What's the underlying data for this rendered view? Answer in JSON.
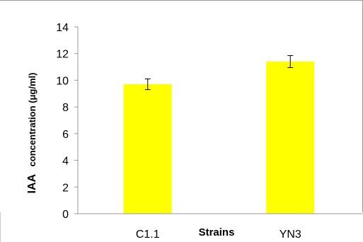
{
  "chart_data": {
    "type": "bar",
    "categories": [
      "C1.1",
      "YN3"
    ],
    "values": [
      9.7,
      11.4
    ],
    "errors": [
      0.4,
      0.45
    ],
    "xlabel": "Strains",
    "ylabel_main": "IAA",
    "ylabel_sub": "concentration (μg/ml)",
    "ylim": [
      0,
      14
    ],
    "yticks": [
      "0",
      "2",
      "4",
      "6",
      "8",
      "10",
      "12",
      "14"
    ],
    "grid": false,
    "legend": "none",
    "colors": {
      "bar": "#ffff00",
      "axis": "#999999",
      "frame": "#999999",
      "error_bar": "#000000"
    }
  }
}
